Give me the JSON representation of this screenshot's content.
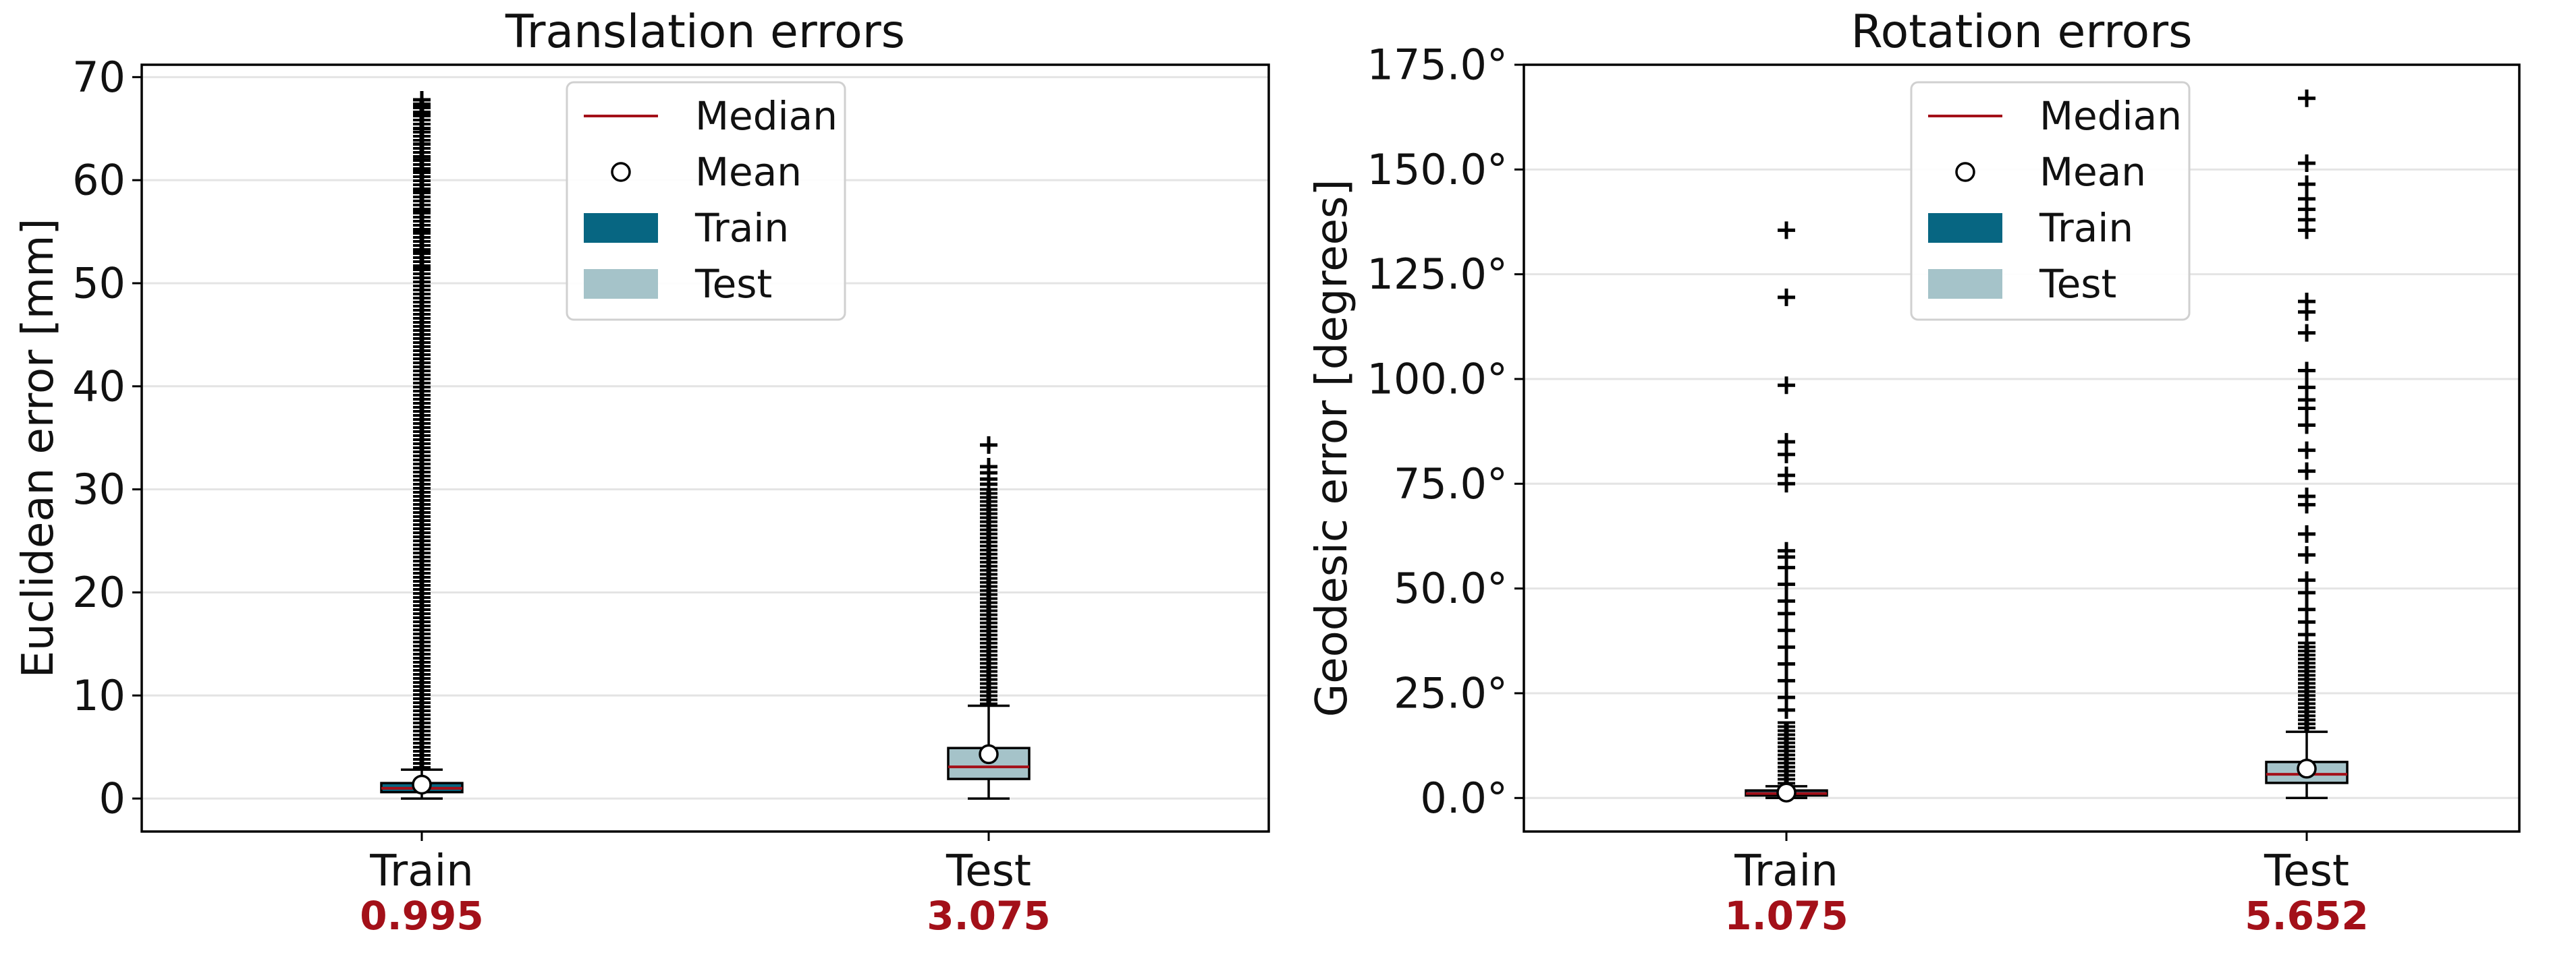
{
  "legend": {
    "median": "Median",
    "mean": "Mean",
    "train": "Train",
    "test": "Test"
  },
  "colors": {
    "train": "#076682",
    "test": "#a5c3c9",
    "median": "#a31019",
    "median_label": "#a31019",
    "grid": "#e4e4e4",
    "axis": "#000000"
  },
  "chart_data": [
    {
      "type": "box",
      "title": "Translation errors",
      "ylabel": "Euclidean error [mm]",
      "xlabel": "",
      "ylim": [
        -3.2,
        71.2
      ],
      "yticks": [
        0,
        10,
        20,
        30,
        40,
        50,
        60,
        70
      ],
      "ytick_labels": [
        "0",
        "10",
        "20",
        "30",
        "40",
        "50",
        "60",
        "70"
      ],
      "grid": true,
      "legend_position": "top-center",
      "categories": [
        "Train",
        "Test"
      ],
      "median_labels": [
        "0.995",
        "3.075"
      ],
      "boxes": [
        {
          "name": "Train",
          "q1": 0.62,
          "median": 0.995,
          "q3": 1.5,
          "whisker_low": 0.0,
          "whisker_high": 2.8,
          "mean": 1.35,
          "outlier_dense_range": [
            2.9,
            67.8
          ],
          "outliers": [
            67.8,
            67.2,
            66.5,
            65.0,
            63.5,
            62.0,
            61.0,
            59.0,
            57.0,
            55.0,
            53.0,
            51.5
          ]
        },
        {
          "name": "Test",
          "q1": 1.9,
          "median": 3.075,
          "q3": 4.9,
          "whisker_low": 0.0,
          "whisker_high": 9.0,
          "mean": 4.3,
          "outlier_dense_range": [
            9.1,
            30.0
          ],
          "outliers": [
            34.3,
            32.2,
            31.6,
            31.0,
            30.5
          ]
        }
      ]
    },
    {
      "type": "box",
      "title": "Rotation errors",
      "ylabel": "Geodesic error [degrees]",
      "xlabel": "",
      "ylim": [
        -8.0,
        175.0
      ],
      "yticks": [
        0,
        25,
        50,
        75,
        100,
        125,
        150,
        175
      ],
      "ytick_labels": [
        "0.0°",
        "25.0°",
        "50.0°",
        "75.0°",
        "100.0°",
        "125.0°",
        "150.0°",
        "175.0°"
      ],
      "grid": true,
      "legend_position": "top-center",
      "categories": [
        "Train",
        "Test"
      ],
      "median_labels": [
        "1.075",
        "5.652"
      ],
      "boxes": [
        {
          "name": "Train",
          "q1": 0.6,
          "median": 1.075,
          "q3": 1.8,
          "whisker_low": 0.0,
          "whisker_high": 2.8,
          "mean": 1.3,
          "outlier_dense_range": [
            3.0,
            18.0
          ],
          "outliers": [
            135.5,
            119.5,
            98.5,
            85.0,
            82.0,
            77.0,
            75.0,
            59.0,
            57.5,
            55.0,
            51.0,
            47.0,
            44.0,
            40.0,
            36.0,
            32.0,
            28.0,
            24.0,
            21.0
          ]
        },
        {
          "name": "Test",
          "q1": 3.6,
          "median": 5.652,
          "q3": 8.6,
          "whisker_low": 0.0,
          "whisker_high": 15.8,
          "mean": 7.0,
          "outlier_dense_range": [
            16.0,
            37.0
          ],
          "outliers": [
            167.0,
            151.5,
            146.5,
            143.0,
            140.5,
            138.0,
            135.5,
            118.5,
            116.0,
            111.0,
            102.0,
            98.0,
            95.0,
            93.0,
            89.0,
            83.0,
            78.0,
            72.0,
            70.0,
            63.0,
            58.0,
            52.0,
            49.0,
            45.0,
            42.0,
            39.0
          ]
        }
      ]
    }
  ]
}
